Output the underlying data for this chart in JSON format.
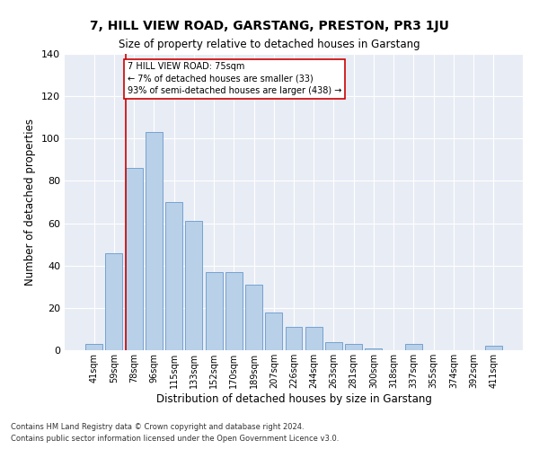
{
  "title": "7, HILL VIEW ROAD, GARSTANG, PRESTON, PR3 1JU",
  "subtitle": "Size of property relative to detached houses in Garstang",
  "xlabel": "Distribution of detached houses by size in Garstang",
  "ylabel": "Number of detached properties",
  "bar_color": "#b8d0e8",
  "bar_edge_color": "#6699cc",
  "background_color": "#e8ecf5",
  "grid_color": "#ffffff",
  "categories": [
    "41sqm",
    "59sqm",
    "78sqm",
    "96sqm",
    "115sqm",
    "133sqm",
    "152sqm",
    "170sqm",
    "189sqm",
    "207sqm",
    "226sqm",
    "244sqm",
    "263sqm",
    "281sqm",
    "300sqm",
    "318sqm",
    "337sqm",
    "355sqm",
    "374sqm",
    "392sqm",
    "411sqm"
  ],
  "values": [
    3,
    46,
    86,
    103,
    70,
    61,
    37,
    37,
    31,
    18,
    11,
    11,
    4,
    3,
    1,
    0,
    3,
    0,
    0,
    0,
    2
  ],
  "ylim": [
    0,
    140
  ],
  "yticks": [
    0,
    20,
    40,
    60,
    80,
    100,
    120,
    140
  ],
  "marker_bar_index": 2,
  "marker_label": "7 HILL VIEW ROAD: 75sqm",
  "marker_line1": "← 7% of detached houses are smaller (33)",
  "marker_line2": "93% of semi-detached houses are larger (438) →",
  "marker_color": "#cc0000",
  "footnote1": "Contains HM Land Registry data © Crown copyright and database right 2024.",
  "footnote2": "Contains public sector information licensed under the Open Government Licence v3.0."
}
